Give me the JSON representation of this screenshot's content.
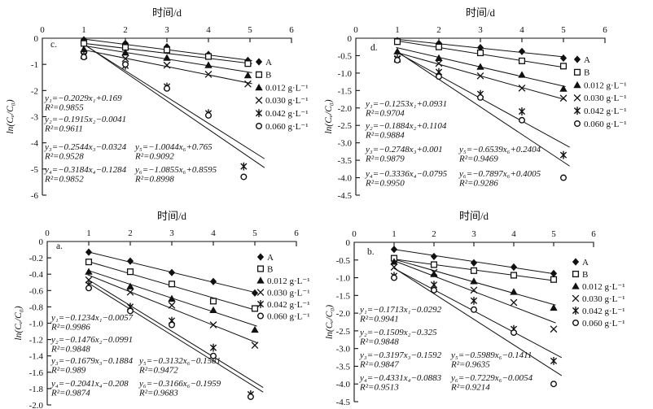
{
  "chart_data": [
    {
      "type": "scatter",
      "panel_label": "c.",
      "xlabel": "时间/d",
      "ylabel": "ln(Cₑ/C₀)",
      "xlim": [
        0,
        6
      ],
      "ylim": [
        0,
        -6
      ],
      "x_tick_labels": [
        "0",
        "1",
        "2",
        "3",
        "4",
        "5",
        "6"
      ],
      "y_tick_labels": [
        "0",
        "-1",
        "-2",
        "-3",
        "-4",
        "-5",
        "-6"
      ],
      "legend_position": "right",
      "series": [
        {
          "name": "A",
          "marker": "filled-diamond",
          "x": [
            1,
            2,
            3,
            4,
            4.95
          ],
          "y": [
            -0.06,
            -0.2,
            -0.33,
            -0.62,
            -0.85
          ],
          "fit": {
            "slope": -0.2029,
            "intercept": 0.169
          }
        },
        {
          "name": "B",
          "marker": "open-square",
          "x": [
            1,
            2,
            3,
            4,
            4.95
          ],
          "y": [
            -0.2,
            -0.35,
            -0.45,
            -0.7,
            -0.97
          ],
          "fit": {
            "slope": -0.1915,
            "intercept": -0.0041
          }
        },
        {
          "name": "0.012 g·L⁻¹",
          "marker": "filled-triangle",
          "x": [
            1,
            2,
            3,
            4,
            4.95
          ],
          "y": [
            -0.42,
            -0.55,
            -0.75,
            -1.03,
            -1.42
          ],
          "fit": {
            "slope": -0.2544,
            "intercept": -0.0324
          }
        },
        {
          "name": "0.030 g·L⁻¹",
          "marker": "cross",
          "x": [
            1,
            2,
            3,
            4,
            4.95
          ],
          "y": [
            -0.65,
            -0.78,
            -1.03,
            -1.38,
            -1.75
          ],
          "fit": {
            "slope": -0.3184,
            "intercept": -0.1284
          }
        },
        {
          "name": "0.042 g·L⁻¹",
          "marker": "asterisk",
          "x": [
            1,
            2,
            3,
            4,
            4.85
          ],
          "y": [
            -0.68,
            -1.05,
            -1.85,
            -2.87,
            -4.9
          ],
          "fit": {
            "slope": -1.0044,
            "intercept": 0.765
          }
        },
        {
          "name": "0.060 g·L⁻¹",
          "marker": "open-circle",
          "x": [
            1,
            2,
            3,
            4,
            4.85
          ],
          "y": [
            -0.72,
            -1.0,
            -1.92,
            -2.95,
            -5.3
          ],
          "fit": {
            "slope": -1.0855,
            "intercept": 0.8595
          }
        }
      ],
      "equations": [
        {
          "line1": "y₁=−0.2029x₁+0.169",
          "line2": "R²=0.9855"
        },
        {
          "line1": "y₂=−0.1915x₂−0.0041",
          "line2": "R²=0.9611"
        },
        {
          "line1": "y₃=−0.2544x₃−0.0324",
          "line2": "R²=0.9528"
        },
        {
          "line1": "y₄=−0.3184x₄−0.1284",
          "line2": "R²=0.9852"
        },
        {
          "line1": "y₅=−1.0044x₆+0.765",
          "line2": "R²=0.9092"
        },
        {
          "line1": "y₆=−1.0855x₆+0.8595",
          "line2": "R²=0.8998"
        }
      ]
    },
    {
      "type": "scatter",
      "panel_label": "d.",
      "xlabel": "时间/d",
      "ylabel": "ln(Cₑ/C₀)",
      "xlim": [
        0,
        6
      ],
      "ylim": [
        0,
        -4.5
      ],
      "x_tick_labels": [
        "0",
        "1",
        "2",
        "3",
        "4",
        "5",
        "6"
      ],
      "y_tick_labels": [
        "0",
        "-0.5",
        "-1.0",
        "-1.5",
        "-2.0",
        "-2.5",
        "-3.0",
        "-3.5",
        "-4.0",
        "-4.5"
      ],
      "legend_position": "right",
      "series": [
        {
          "name": "A",
          "marker": "filled-diamond",
          "x": [
            1,
            2,
            3,
            4,
            5
          ],
          "y": [
            -0.07,
            -0.15,
            -0.27,
            -0.38,
            -0.57
          ],
          "fit": {
            "slope": -0.1253,
            "intercept": 0.0931
          }
        },
        {
          "name": "B",
          "marker": "open-square",
          "x": [
            1,
            2,
            3,
            4,
            5
          ],
          "y": [
            -0.1,
            -0.25,
            -0.42,
            -0.65,
            -0.8
          ],
          "fit": {
            "slope": -0.1884,
            "intercept": 0.1104
          }
        },
        {
          "name": "0.012 g·L⁻¹",
          "marker": "filled-triangle",
          "x": [
            1,
            2,
            3,
            4,
            5
          ],
          "y": [
            -0.38,
            -0.57,
            -0.82,
            -1.05,
            -1.45
          ],
          "fit": {
            "slope": -0.2748,
            "intercept": 0.001
          }
        },
        {
          "name": "0.030 g·L⁻¹",
          "marker": "cross",
          "x": [
            1,
            2,
            3,
            4,
            5
          ],
          "y": [
            -0.6,
            -0.72,
            -1.08,
            -1.43,
            -1.72
          ],
          "fit": {
            "slope": -0.3336,
            "intercept": -0.0795
          }
        },
        {
          "name": "0.042 g·L⁻¹",
          "marker": "asterisk",
          "x": [
            1,
            2,
            3,
            4,
            5
          ],
          "y": [
            -0.58,
            -0.97,
            -1.6,
            -2.1,
            -3.35
          ],
          "fit": {
            "slope": -0.6539,
            "intercept": 0.2404
          }
        },
        {
          "name": "0.060 g·L⁻¹",
          "marker": "open-circle",
          "x": [
            1,
            2,
            3,
            4,
            5
          ],
          "y": [
            -0.63,
            -1.1,
            -1.7,
            -2.35,
            -4.0
          ],
          "fit": {
            "slope": -0.7897,
            "intercept": 0.4005
          }
        }
      ],
      "equations": [
        {
          "line1": "y₁=−0.1253x₁+0.0931",
          "line2": "R²=0.9704"
        },
        {
          "line1": "y₂=−0.1884x₂+0.1104",
          "line2": "R²=0.9884"
        },
        {
          "line1": "y₃=−0.2748x₃+0.001",
          "line2": "R²=0.9879"
        },
        {
          "line1": "y₄=−0.3336x₄−0.0795",
          "line2": "R²=0.9950"
        },
        {
          "line1": "y₅=−0.6539x₆+0.2404",
          "line2": "R²=0.9469"
        },
        {
          "line1": "y₆=−0.7897x₆+0.4005",
          "line2": "R²=0.9286"
        }
      ]
    },
    {
      "type": "scatter",
      "panel_label": "a.",
      "xlabel": "时间/d",
      "ylabel": "ln(Cₑ/C₀)",
      "xlim": [
        0,
        6
      ],
      "ylim": [
        0,
        -2.0
      ],
      "x_tick_labels": [
        "0",
        "1",
        "2",
        "3",
        "4",
        "5",
        "6"
      ],
      "y_tick_labels": [
        "0",
        "-0.2",
        "-0.4",
        "-0.6",
        "-0.8",
        "-1.0",
        "-1.2",
        "-1.4",
        "-1.6",
        "-1.8",
        "-2.0"
      ],
      "legend_position": "right",
      "series": [
        {
          "name": "A",
          "marker": "filled-diamond",
          "x": [
            1,
            2,
            3,
            4,
            5
          ],
          "y": [
            -0.13,
            -0.24,
            -0.38,
            -0.49,
            -0.63
          ],
          "fit": {
            "slope": -0.1234,
            "intercept": -0.0057
          }
        },
        {
          "name": "B",
          "marker": "open-square",
          "x": [
            1,
            2,
            3,
            4,
            5
          ],
          "y": [
            -0.25,
            -0.37,
            -0.52,
            -0.73,
            -0.82
          ],
          "fit": {
            "slope": -0.1476,
            "intercept": -0.0991
          }
        },
        {
          "name": "0.012 g·L⁻¹",
          "marker": "filled-triangle",
          "x": [
            1,
            2,
            3,
            4,
            5
          ],
          "y": [
            -0.37,
            -0.55,
            -0.7,
            -0.84,
            -1.08
          ],
          "fit": {
            "slope": -0.1679,
            "intercept": -0.1884
          }
        },
        {
          "name": "0.030 g·L⁻¹",
          "marker": "cross",
          "x": [
            1,
            2,
            3,
            4,
            5
          ],
          "y": [
            -0.47,
            -0.62,
            -0.78,
            -1.02,
            -1.27
          ],
          "fit": {
            "slope": -0.2041,
            "intercept": -0.208
          }
        },
        {
          "name": "0.042 g·L⁻¹",
          "marker": "asterisk",
          "x": [
            1,
            2,
            3,
            4,
            4.9
          ],
          "y": [
            -0.53,
            -0.8,
            -0.97,
            -1.3,
            -1.87
          ],
          "fit": {
            "slope": -0.3132,
            "intercept": -0.1581
          }
        },
        {
          "name": "0.060 g·L⁻¹",
          "marker": "open-circle",
          "x": [
            1,
            2,
            3,
            4,
            4.9
          ],
          "y": [
            -0.57,
            -0.85,
            -1.02,
            -1.4,
            -1.9
          ],
          "fit": {
            "slope": -0.3166,
            "intercept": -0.1959
          }
        }
      ],
      "equations": [
        {
          "line1": "y₁=−0.1234x₁−0.0057",
          "line2": "R²=0.9986"
        },
        {
          "line1": "y₂=−0.1476x₂−0.0991",
          "line2": "R²=0.9848"
        },
        {
          "line1": "y₃=−0.1679x₃−0.1884",
          "line2": "R²=0.989"
        },
        {
          "line1": "y₄=−0.2041x₄−0.208",
          "line2": "R²=0.9874"
        },
        {
          "line1": "y₅=−0.3132x₆−0.1581",
          "line2": "R²=0.9472"
        },
        {
          "line1": "y₆=−0.3166x₆−0.1959",
          "line2": "R²=0.9683"
        }
      ]
    },
    {
      "type": "scatter",
      "panel_label": "b.",
      "xlabel": "时间/d",
      "ylabel": "ln(Cₑ/C₀)",
      "xlim": [
        0,
        6
      ],
      "ylim": [
        0,
        -4.5
      ],
      "x_tick_labels": [
        "0",
        "1",
        "2",
        "3",
        "4",
        "5",
        "6"
      ],
      "y_tick_labels": [
        "0",
        "-0.5",
        "-1.0",
        "-1.5",
        "-2.0",
        "-2.5",
        "-3.0",
        "-3.5",
        "-4.0",
        "-4.5"
      ],
      "legend_position": "right",
      "series": [
        {
          "name": "A",
          "marker": "filled-diamond",
          "x": [
            1,
            2,
            3,
            4,
            5
          ],
          "y": [
            -0.2,
            -0.4,
            -0.58,
            -0.7,
            -0.88
          ],
          "fit": {
            "slope": -0.1713,
            "intercept": -0.0292
          }
        },
        {
          "name": "B",
          "marker": "open-square",
          "x": [
            1,
            2,
            3,
            4,
            5
          ],
          "y": [
            -0.45,
            -0.63,
            -0.8,
            -0.93,
            -1.05
          ],
          "fit": {
            "slope": -0.1509,
            "intercept": -0.325
          }
        },
        {
          "name": "0.012 g·L⁻¹",
          "marker": "filled-triangle",
          "x": [
            1,
            2,
            3,
            4,
            5
          ],
          "y": [
            -0.55,
            -0.9,
            -1.1,
            -1.4,
            -1.85
          ],
          "fit": {
            "slope": -0.3197,
            "intercept": -0.1592
          }
        },
        {
          "name": "0.030 g·L⁻¹",
          "marker": "cross",
          "x": [
            1,
            2,
            3,
            4,
            5
          ],
          "y": [
            -0.7,
            -0.85,
            -1.35,
            -1.7,
            -2.45
          ],
          "fit": {
            "slope": -0.4331,
            "intercept": -0.0883
          }
        },
        {
          "name": "0.042 g·L⁻¹",
          "marker": "asterisk",
          "x": [
            1,
            2,
            3,
            4,
            5
          ],
          "y": [
            -0.95,
            -1.2,
            -1.65,
            -2.45,
            -3.35
          ],
          "fit": {
            "slope": -0.5989,
            "intercept": -0.1411
          }
        },
        {
          "name": "0.060 g·L⁻¹",
          "marker": "open-circle",
          "x": [
            1,
            2,
            3,
            4,
            5
          ],
          "y": [
            -1.0,
            -1.35,
            -1.9,
            -2.55,
            -4.0
          ],
          "fit": {
            "slope": -0.7229,
            "intercept": -0.0054
          }
        }
      ],
      "equations": [
        {
          "line1": "y₁=−0.1713x₁−0.0292",
          "line2": "R²=0.9941"
        },
        {
          "line1": "y₂=−0.1509x₂−0.325",
          "line2": "R²=0.9848"
        },
        {
          "line1": "y₃=−0.3197x₃−0.1592",
          "line2": "R²=0.9847"
        },
        {
          "line1": "y₄=−0.4331x₄−0.0883",
          "line2": "R²=0.9513"
        },
        {
          "line1": "y₅=−0.5989x₆−0.1411",
          "line2": "R²=0.9635"
        },
        {
          "line1": "y₆=−0.7229x₆−0.0054",
          "line2": "R²=0.9214"
        }
      ]
    }
  ],
  "colors": {
    "ink": "#111111",
    "background": "#ffffff"
  }
}
